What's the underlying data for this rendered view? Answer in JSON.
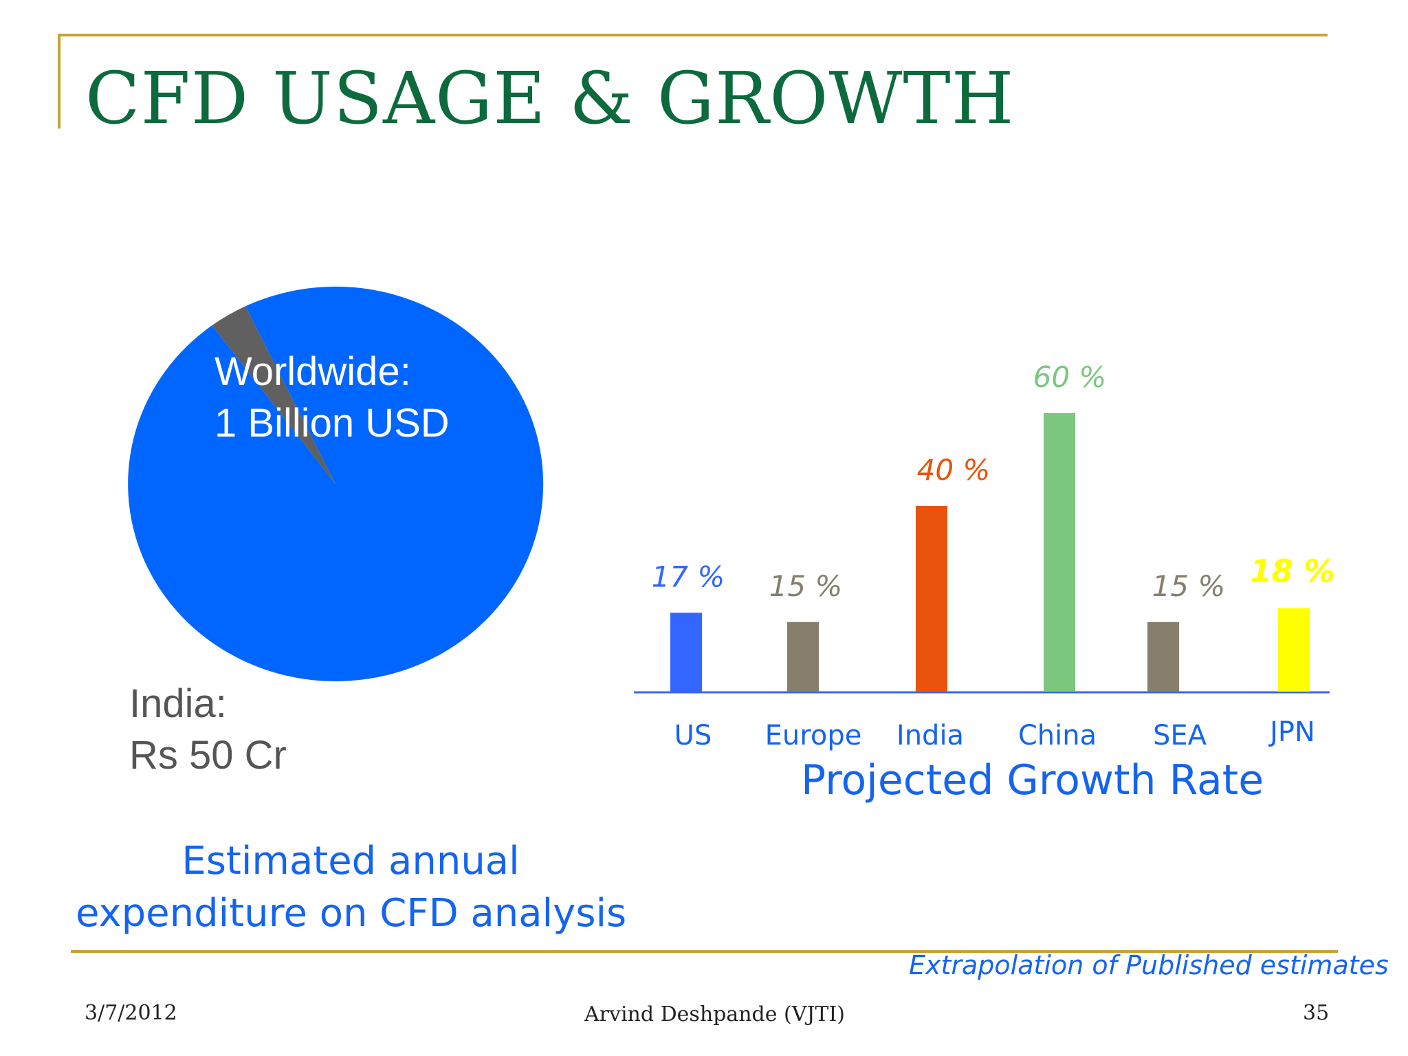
{
  "slide": {
    "title": "CFD USAGE  & GROWTH",
    "footer_date": "3/7/2012",
    "footer_author": "Arvind Deshpande (VJTI)",
    "page_number": "35",
    "source_note": "Extrapolation of Published estimates"
  },
  "colors": {
    "title": "#0d6a3c",
    "rule": "#c8a235",
    "caption": "#1464f0"
  },
  "chart_data": [
    {
      "type": "pie",
      "slices": [
        {
          "label": "Worldwide:\n1 Billion USD",
          "value": 0.97,
          "color": "#0066ff"
        },
        {
          "label": "India:\n Rs 50 Cr",
          "value": 0.03,
          "color": "#606060"
        }
      ],
      "caption": "Estimated annual\nexpenditure on CFD analysis"
    },
    {
      "type": "bar",
      "categories": [
        "US",
        "Europe",
        "India",
        "China",
        "SEA",
        "JPN"
      ],
      "values": [
        17,
        15,
        40,
        60,
        15,
        18
      ],
      "value_labels": [
        "17 %",
        "15 %",
        "40 %",
        "60 %",
        "15 %",
        "18 %"
      ],
      "bar_colors": [
        "#3366ff",
        "#867f6e",
        "#e9530c",
        "#7ac77d",
        "#867f6e",
        "#ffff00"
      ],
      "label_colors": [
        "#3366ff",
        "#867f6e",
        "#e9530c",
        "#7ac77d",
        "#867f6e",
        "#ffff00"
      ],
      "tick_color": "#1464f0",
      "ylim": [
        0,
        60
      ],
      "caption": "Projected Growth Rate"
    }
  ]
}
